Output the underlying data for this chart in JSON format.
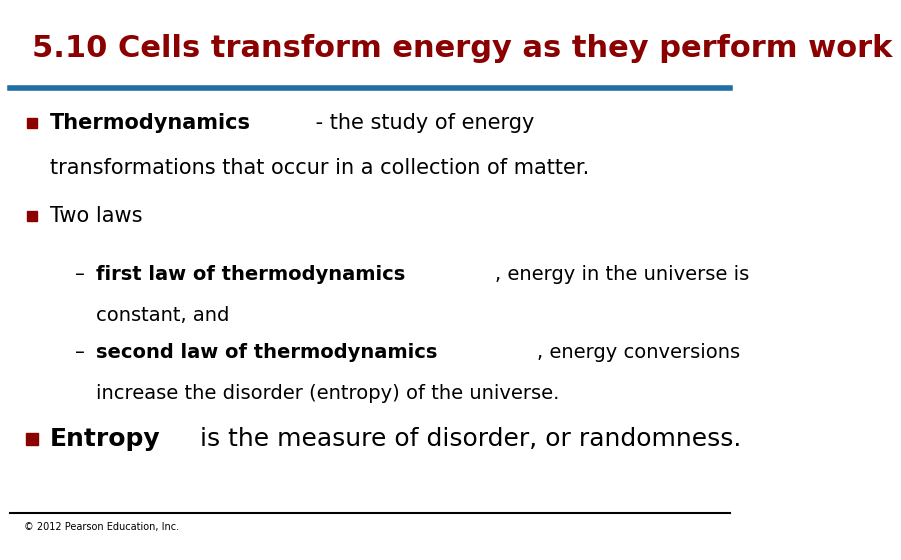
{
  "title": "5.10 Cells transform energy as they perform work",
  "title_color": "#8B0000",
  "title_fontsize": 22,
  "header_line_color": "#1F6EA6",
  "header_line_thickness": 4,
  "footer_line_color": "#000000",
  "footer_line_thickness": 1.5,
  "footer_text": "© 2012 Pearson Education, Inc.",
  "footer_fontsize": 7,
  "bullet_color": "#8B0000",
  "background_color": "#ffffff",
  "bullet1_bold": "Thermodynamics",
  "bullet1_normal_1": " - the study of energy",
  "bullet1_normal_2": "transformations that occur in a collection of matter.",
  "bullet2_text": "Two laws",
  "sub1_bold": "first law of thermodynamics",
  "sub1_normal_1": ", energy in the universe is",
  "sub1_normal_2": "constant, and",
  "sub2_bold": "second law of thermodynamics",
  "sub2_normal_1": ", energy conversions",
  "sub2_normal_2": "increase the disorder (entropy) of the universe.",
  "bullet3_bold": "Entropy",
  "bullet3_normal": " is the measure of disorder, or randomness.",
  "main_fontsize": 15,
  "sub_fontsize": 14,
  "large_fontsize": 18
}
